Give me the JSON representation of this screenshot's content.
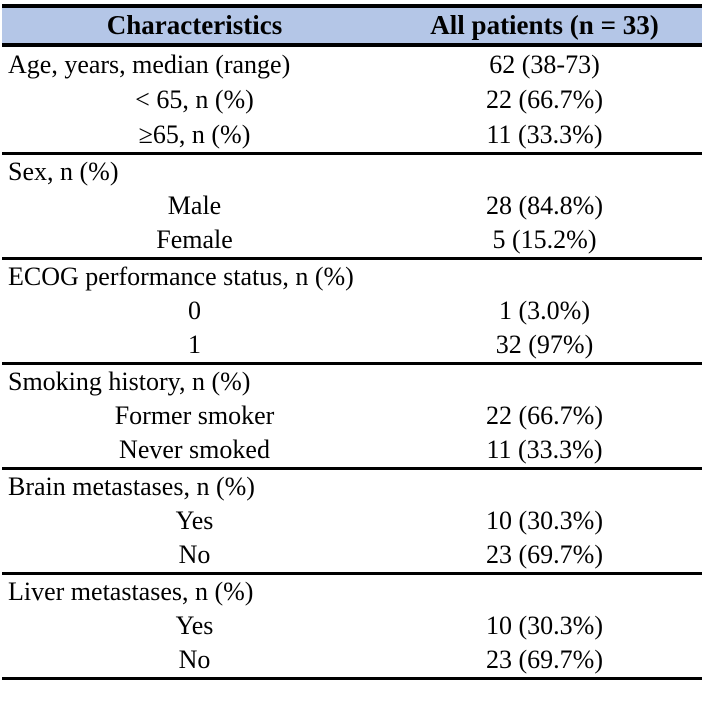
{
  "title": "Patient baseline characteristics table",
  "colors": {
    "header_background": "#B4C6E7",
    "border": "#000000",
    "text": "#000000"
  },
  "header": {
    "col1": "Characteristics",
    "col2": "All patients (n = 33)"
  },
  "sections": [
    {
      "rows": [
        {
          "label": "Age, years, median (range)",
          "value": "62 (38-73)"
        },
        {
          "label": "< 65, n (%)",
          "value": "22 (66.7%)"
        },
        {
          "label": "≥65, n (%)",
          "value": "11 (33.3%)"
        }
      ]
    },
    {
      "rows": [
        {
          "label": "Sex, n (%)",
          "value": ""
        },
        {
          "label": "Male",
          "value": "28 (84.8%)"
        },
        {
          "label": "Female",
          "value": "5 (15.2%)"
        }
      ]
    },
    {
      "rows": [
        {
          "label": "ECOG performance status, n (%)",
          "value": ""
        },
        {
          "label": "0",
          "value": "1 (3.0%)"
        },
        {
          "label": "1",
          "value": "32 (97%)"
        }
      ]
    },
    {
      "rows": [
        {
          "label": "Smoking history, n (%)",
          "value": ""
        },
        {
          "label": "Former smoker",
          "value": "22 (66.7%)"
        },
        {
          "label": "Never smoked",
          "value": "11 (33.3%)"
        }
      ]
    },
    {
      "rows": [
        {
          "label": "Brain metastases, n (%)",
          "value": ""
        },
        {
          "label": "Yes",
          "value": "10 (30.3%)"
        },
        {
          "label": "No",
          "value": "23 (69.7%)"
        }
      ]
    },
    {
      "rows": [
        {
          "label": "Liver metastases, n (%)",
          "value": ""
        },
        {
          "label": "Yes",
          "value": "10 (30.3%)"
        },
        {
          "label": "No",
          "value": "23 (69.7%)"
        }
      ]
    }
  ]
}
